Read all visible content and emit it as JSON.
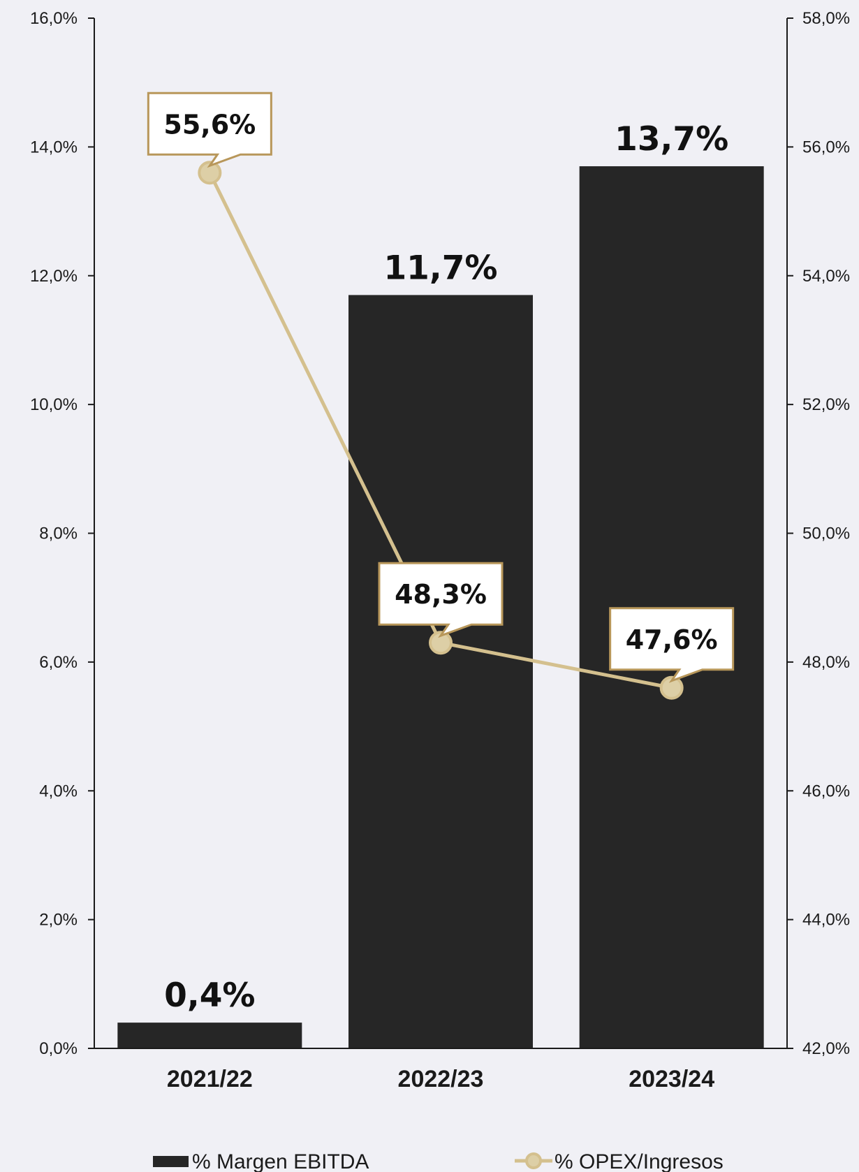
{
  "chart_data": {
    "type": "bar",
    "categories": [
      "2021/22",
      "2022/23",
      "2023/24"
    ],
    "series": [
      {
        "name": "% Margen EBITDA",
        "kind": "bar",
        "axis": "left",
        "values": [
          0.4,
          11.7,
          13.7
        ],
        "labels": [
          "0,4%",
          "11,7%",
          "13,7%"
        ],
        "color": "#262626"
      },
      {
        "name": "% OPEX/Ingresos",
        "kind": "line",
        "axis": "right",
        "values": [
          55.6,
          48.3,
          47.6
        ],
        "labels": [
          "55,6%",
          "48,3%",
          "47,6%"
        ],
        "color": "#d4c08e"
      }
    ],
    "left_axis": {
      "ylim": [
        0,
        16
      ],
      "ticks": [
        "0,0%",
        "2,0%",
        "4,0%",
        "6,0%",
        "8,0%",
        "10,0%",
        "12,0%",
        "14,0%",
        "16,0%"
      ]
    },
    "right_axis": {
      "ylim": [
        42,
        58
      ],
      "ticks": [
        "42,0%",
        "44,0%",
        "46,0%",
        "48,0%",
        "50,0%",
        "52,0%",
        "54,0%",
        "56,0%",
        "58,0%"
      ]
    },
    "grid": false,
    "legend_position": "bottom",
    "callout_border_color": "#b8975a",
    "background": "#f0f0f5"
  }
}
